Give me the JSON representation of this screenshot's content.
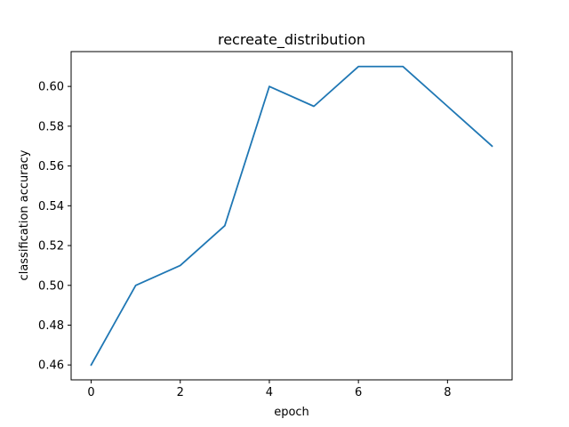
{
  "chart_data": {
    "type": "line",
    "title": "recreate_distribution",
    "xlabel": "epoch",
    "ylabel": "classification accuracy",
    "x": [
      0,
      1,
      2,
      3,
      4,
      5,
      6,
      7,
      8,
      9
    ],
    "series": [
      {
        "values": [
          0.46,
          0.5,
          0.51,
          0.53,
          0.6,
          0.59,
          0.61,
          0.61,
          0.59,
          0.57
        ],
        "color": "#1f77b4"
      }
    ],
    "xlim": [
      -0.45,
      9.45
    ],
    "ylim": [
      0.4525,
      0.6175
    ],
    "xticks": [
      0,
      2,
      4,
      6,
      8
    ],
    "xtick_labels": [
      "0",
      "2",
      "4",
      "6",
      "8"
    ],
    "yticks": [
      0.46,
      0.48,
      0.5,
      0.52,
      0.54,
      0.56,
      0.58,
      0.6
    ],
    "ytick_labels": [
      "0.46",
      "0.48",
      "0.50",
      "0.52",
      "0.54",
      "0.56",
      "0.58",
      "0.60"
    ],
    "grid": false,
    "legend": false
  }
}
